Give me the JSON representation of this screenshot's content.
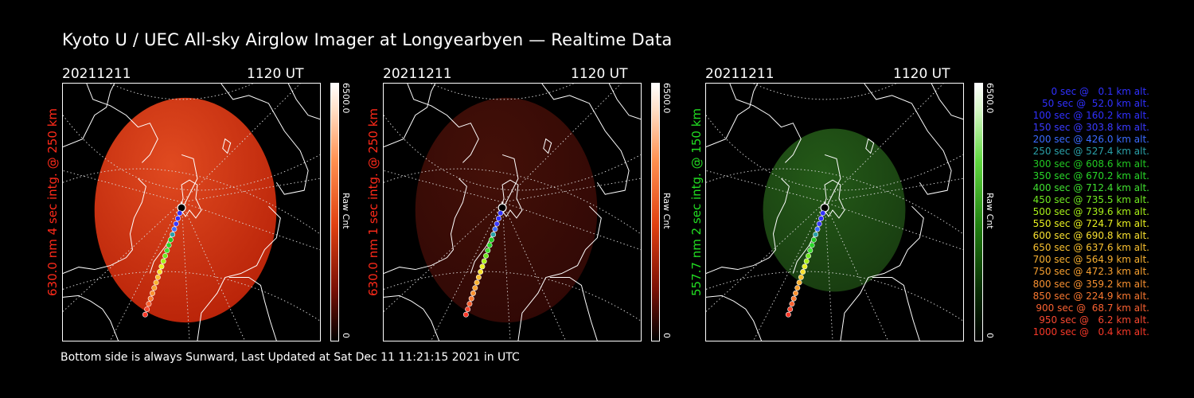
{
  "title": "Kyoto U / UEC All-sky Airglow Imager at Longyearbyen — Realtime Data",
  "colors": {
    "red_label": "#ff2a1a",
    "green_label": "#22dd22",
    "red_disk": "#c82a0c",
    "dim_red_disk": "#3a0a05",
    "green_disk": "#1c4a12"
  },
  "panels": [
    {
      "date": "20211211",
      "time": "1120 UT",
      "side_label": "630.0 nm 4 sec intg. @ 250 km",
      "colorbar_max": "6500.0",
      "colorbar_min": "0",
      "colorbar_unit": "Raw Cnt"
    },
    {
      "date": "20211211",
      "time": "1120 UT",
      "side_label": "630.0 nm 1 sec intg. @ 250 km",
      "colorbar_max": "6500.0",
      "colorbar_min": "0",
      "colorbar_unit": "Raw Cnt"
    },
    {
      "date": "20211211",
      "time": "1120 UT",
      "side_label": "557.7 nm 2 sec intg. @ 150 km",
      "colorbar_max": "6500.0",
      "colorbar_min": "0",
      "colorbar_unit": "Raw Cnt"
    }
  ],
  "legend": [
    {
      "text": "0 sec @   0.1 km alt.",
      "color": "#3030ff"
    },
    {
      "text": "50 sec @  52.0 km alt.",
      "color": "#3030ff"
    },
    {
      "text": "100 sec @ 160.2 km alt.",
      "color": "#3030ff"
    },
    {
      "text": "150 sec @ 303.8 km alt.",
      "color": "#3a3aff"
    },
    {
      "text": "200 sec @ 426.0 km alt.",
      "color": "#3a6aff"
    },
    {
      "text": "250 sec @ 527.4 km alt.",
      "color": "#2aa0a8"
    },
    {
      "text": "300 sec @ 608.6 km alt.",
      "color": "#22c822"
    },
    {
      "text": "350 sec @ 670.2 km alt.",
      "color": "#28d828"
    },
    {
      "text": "400 sec @ 712.4 km alt.",
      "color": "#40e030"
    },
    {
      "text": "450 sec @ 735.5 km alt.",
      "color": "#70e820"
    },
    {
      "text": "500 sec @ 739.6 km alt.",
      "color": "#a8f018"
    },
    {
      "text": "550 sec @ 724.7 km alt.",
      "color": "#e8f020"
    },
    {
      "text": "600 sec @ 690.8 km alt.",
      "color": "#f8e030"
    },
    {
      "text": "650 sec @ 637.6 km alt.",
      "color": "#f8c030"
    },
    {
      "text": "700 sec @ 564.9 km alt.",
      "color": "#f8b030"
    },
    {
      "text": "750 sec @ 472.3 km alt.",
      "color": "#f8a030"
    },
    {
      "text": "800 sec @ 359.2 km alt.",
      "color": "#f89030"
    },
    {
      "text": "850 sec @ 224.9 km alt.",
      "color": "#f87830"
    },
    {
      "text": "900 sec @  68.7 km alt.",
      "color": "#f86030"
    },
    {
      "text": "950 sec @   6.2 km alt.",
      "color": "#f84830"
    },
    {
      "text": "1000 sec @   0.4 km alt.",
      "color": "#f83828"
    }
  ],
  "footer": "Bottom side is always Sunward, Last Updated at Sat Dec 11 11:21:15 2021 in UTC"
}
